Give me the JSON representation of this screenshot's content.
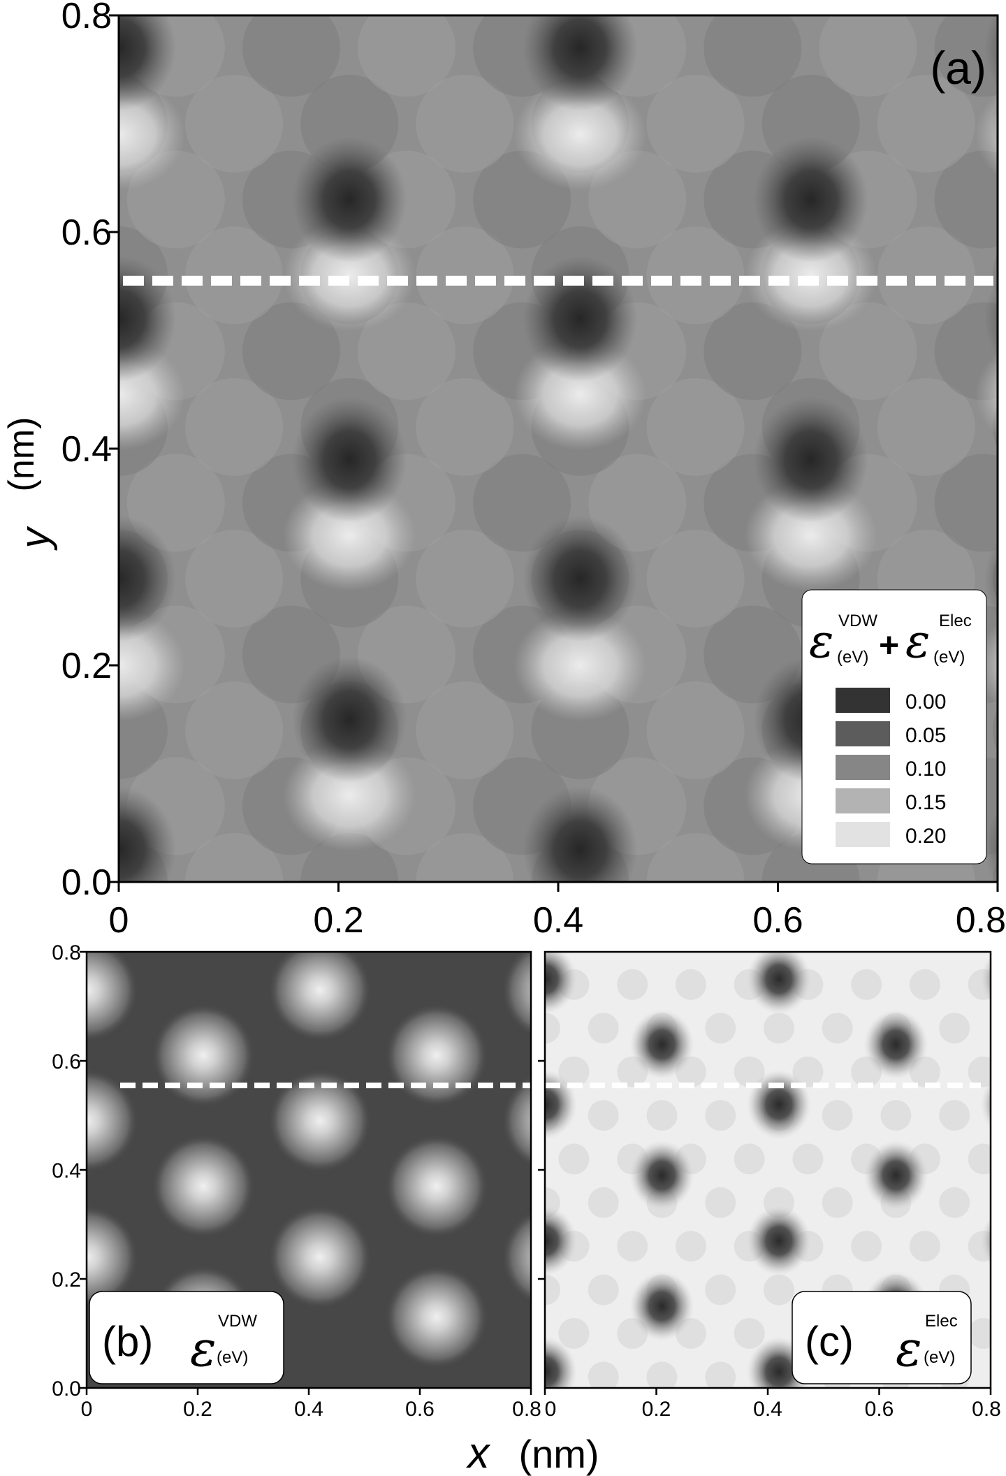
{
  "chart_data": [
    {
      "type": "heatmap",
      "panel_label": "(a)",
      "xlim": [
        0,
        0.8
      ],
      "ylim": [
        0,
        0.8
      ],
      "xticks": [
        "0",
        "0.2",
        "0.4",
        "0.6",
        "0.8"
      ],
      "yticks": [
        "0.0",
        "0.2",
        "0.4",
        "0.6",
        "0.8"
      ],
      "ylabel": {
        "var": "y",
        "unit": "(nm)"
      },
      "cut_line_y": 0.555,
      "legend": {
        "title": {
          "symbol": "ε",
          "sup1": "VDW",
          "sub1": "(eV)",
          "plus": "+",
          "sup2": "Elec",
          "sub2": "(eV)"
        },
        "placement": "bottom-right",
        "entries": [
          {
            "label": "0.00",
            "color": "#333333"
          },
          {
            "label": "0.05",
            "color": "#5c5c5c"
          },
          {
            "label": "0.10",
            "color": "#868686"
          },
          {
            "label": "0.15",
            "color": "#b3b3b3"
          },
          {
            "label": "0.20",
            "color": "#e2e2e2"
          }
        ]
      },
      "minima_centers": [
        [
          0.21,
          0.63
        ],
        [
          0.63,
          0.63
        ],
        [
          0.21,
          0.39
        ],
        [
          0.63,
          0.39
        ],
        [
          0.21,
          0.15
        ],
        [
          0.63,
          0.15
        ],
        [
          0.42,
          0.77
        ],
        [
          0.42,
          0.52
        ],
        [
          0.42,
          0.28
        ],
        [
          0.42,
          0.03
        ],
        [
          0.0,
          0.77
        ],
        [
          0.0,
          0.52
        ],
        [
          0.0,
          0.28
        ],
        [
          0.0,
          0.03
        ],
        [
          0.84,
          0.77
        ],
        [
          0.84,
          0.52
        ],
        [
          0.84,
          0.28
        ],
        [
          0.84,
          0.03
        ]
      ],
      "maxima_centers": [
        [
          0.42,
          0.69
        ],
        [
          0.21,
          0.56
        ],
        [
          0.63,
          0.56
        ],
        [
          0.42,
          0.45
        ],
        [
          0.21,
          0.32
        ],
        [
          0.63,
          0.32
        ],
        [
          0.42,
          0.2
        ],
        [
          0.21,
          0.08
        ],
        [
          0.63,
          0.08
        ],
        [
          0.0,
          0.69
        ],
        [
          0.0,
          0.45
        ],
        [
          0.0,
          0.2
        ],
        [
          0.84,
          0.69
        ],
        [
          0.84,
          0.45
        ],
        [
          0.84,
          0.2
        ]
      ]
    },
    {
      "type": "heatmap",
      "panel_label": "(b)",
      "xlim": [
        0,
        0.8
      ],
      "ylim": [
        0,
        0.8
      ],
      "xticks": [
        "0",
        "0.2",
        "0.4",
        "0.6",
        "0.8"
      ],
      "yticks": [
        "0.0",
        "0.2",
        "0.4",
        "0.6",
        "0.8"
      ],
      "cut_line_y": 0.555,
      "label_symbol": {
        "symbol": "ε",
        "sup": "VDW",
        "sub": "(eV)"
      },
      "background_color": "#474747",
      "maxima_centers": [
        [
          0.21,
          0.61
        ],
        [
          0.63,
          0.61
        ],
        [
          0.42,
          0.73
        ],
        [
          0.42,
          0.49
        ],
        [
          0.21,
          0.37
        ],
        [
          0.63,
          0.37
        ],
        [
          0.42,
          0.24
        ],
        [
          0.21,
          0.13
        ],
        [
          0.63,
          0.13
        ],
        [
          0.0,
          0.73
        ],
        [
          0.0,
          0.49
        ],
        [
          0.0,
          0.24
        ],
        [
          0.84,
          0.73
        ],
        [
          0.84,
          0.49
        ],
        [
          0.84,
          0.24
        ]
      ]
    },
    {
      "type": "heatmap",
      "panel_label": "(c)",
      "xlim": [
        0,
        0.8
      ],
      "ylim": [
        0,
        0.8
      ],
      "xticks": [
        "0",
        "0.2",
        "0.4",
        "0.6",
        "0.8"
      ],
      "cut_line_y": 0.555,
      "label_symbol": {
        "symbol": "ε",
        "sup": "Elec",
        "sub": "(eV)"
      },
      "background_color": "#eeeeee",
      "minima_centers": [
        [
          0.42,
          0.75
        ],
        [
          0.21,
          0.63
        ],
        [
          0.63,
          0.63
        ],
        [
          0.42,
          0.52
        ],
        [
          0.21,
          0.39
        ],
        [
          0.63,
          0.39
        ],
        [
          0.42,
          0.27
        ],
        [
          0.21,
          0.15
        ],
        [
          0.63,
          0.15
        ],
        [
          0.42,
          0.03
        ],
        [
          0.0,
          0.75
        ],
        [
          0.0,
          0.52
        ],
        [
          0.0,
          0.27
        ],
        [
          0.0,
          0.03
        ],
        [
          0.84,
          0.75
        ],
        [
          0.84,
          0.52
        ],
        [
          0.84,
          0.27
        ]
      ]
    }
  ],
  "shared_xlabel": {
    "var": "x",
    "unit": "(nm)"
  }
}
